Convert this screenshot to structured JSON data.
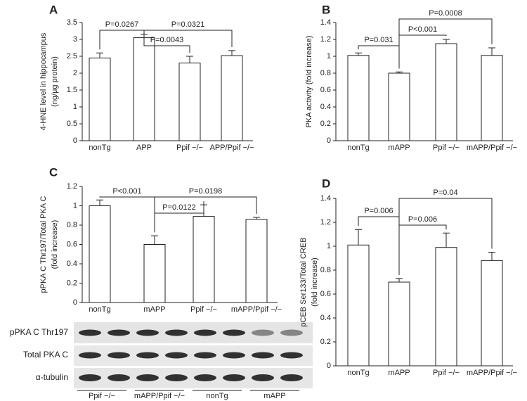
{
  "chart_data": [
    {
      "type": "bar",
      "panel": "A",
      "ylabel": [
        "4-HNE level in hippocampus",
        "(ng/μg protein)"
      ],
      "categories": [
        "nonTg",
        "APP",
        "Ppif −/−",
        "APP/Ppif −/−"
      ],
      "values": [
        2.45,
        3.05,
        2.3,
        2.52
      ],
      "errors": [
        0.15,
        0.1,
        0.2,
        0.15
      ],
      "ylim": [
        0,
        3.5
      ],
      "yticks": [
        0,
        0.5,
        1,
        1.5,
        2,
        2.5,
        3,
        3.5
      ],
      "color": "#ffffff",
      "comparisons": [
        {
          "label": "P=0.0267",
          "between": [
            0,
            1
          ]
        },
        {
          "label": "P=0.0043",
          "between": [
            1,
            2
          ]
        },
        {
          "label": "P=0.0321",
          "between": [
            1,
            3
          ]
        }
      ]
    },
    {
      "type": "bar",
      "panel": "B",
      "ylabel": [
        "PKA activity (fold increase)"
      ],
      "categories": [
        "nonTg",
        "mAPP",
        "Ppif −/−",
        "mAPP/Ppif −/−"
      ],
      "values": [
        1.01,
        0.8,
        1.15,
        1.01
      ],
      "errors": [
        0.03,
        0.015,
        0.05,
        0.09
      ],
      "ylim": [
        0,
        1.4
      ],
      "yticks": [
        0,
        0.2,
        0.4,
        0.6,
        0.8,
        1,
        1.2,
        1.4
      ],
      "color": "#ffffff",
      "comparisons": [
        {
          "label": "P=0.031",
          "between": [
            0,
            1
          ]
        },
        {
          "label": "P<0.001",
          "between": [
            1,
            2
          ]
        },
        {
          "label": "P=0.0008",
          "between": [
            1,
            3
          ]
        }
      ]
    },
    {
      "type": "bar",
      "panel": "C",
      "ylabel": [
        "pPKA C Thr197/Total PKA C",
        "(fold increase)"
      ],
      "categories": [
        "nonTg",
        "mAPP",
        "Ppif −/−",
        "mAPP/Ppif −/−"
      ],
      "values": [
        1.0,
        0.6,
        0.89,
        0.86
      ],
      "errors": [
        0.06,
        0.09,
        0.12,
        0.02
      ],
      "ylim": [
        0,
        1.2
      ],
      "yticks": [
        0,
        0.2,
        0.4,
        0.6,
        0.8,
        1,
        1.2
      ],
      "color": "#ffffff",
      "comparisons": [
        {
          "label": "P<0.001",
          "between": [
            0,
            1
          ]
        },
        {
          "label": "P=0.0122",
          "between": [
            1,
            2
          ]
        },
        {
          "label": "P=0.0198",
          "between": [
            1,
            3
          ]
        }
      ]
    },
    {
      "type": "bar",
      "panel": "D",
      "ylabel": [
        "pCEB Ser133/Total CREB",
        "(fold increase)"
      ],
      "categories": [
        "nonTg",
        "mAPP",
        "Ppif −/−",
        "mAPP/Ppif −/−"
      ],
      "values": [
        1.01,
        0.7,
        0.99,
        0.88
      ],
      "errors": [
        0.13,
        0.03,
        0.12,
        0.07
      ],
      "ylim": [
        0,
        1.4
      ],
      "yticks": [
        0,
        0.2,
        0.4,
        0.6,
        0.8,
        1,
        1.2,
        1.4
      ],
      "color": "#ffffff",
      "comparisons": [
        {
          "label": "P=0.006",
          "between": [
            0,
            1
          ]
        },
        {
          "label": "P=0.006",
          "between": [
            1,
            2
          ]
        },
        {
          "label": "P=0.04",
          "between": [
            1,
            3
          ]
        }
      ]
    }
  ],
  "blot": {
    "rows": [
      "pPKA C Thr197",
      "Total PKA C",
      "α-tubulin"
    ],
    "groups": [
      "Ppif −/−",
      "mAPP/Ppif −/−",
      "nonTg",
      "mAPP"
    ]
  }
}
